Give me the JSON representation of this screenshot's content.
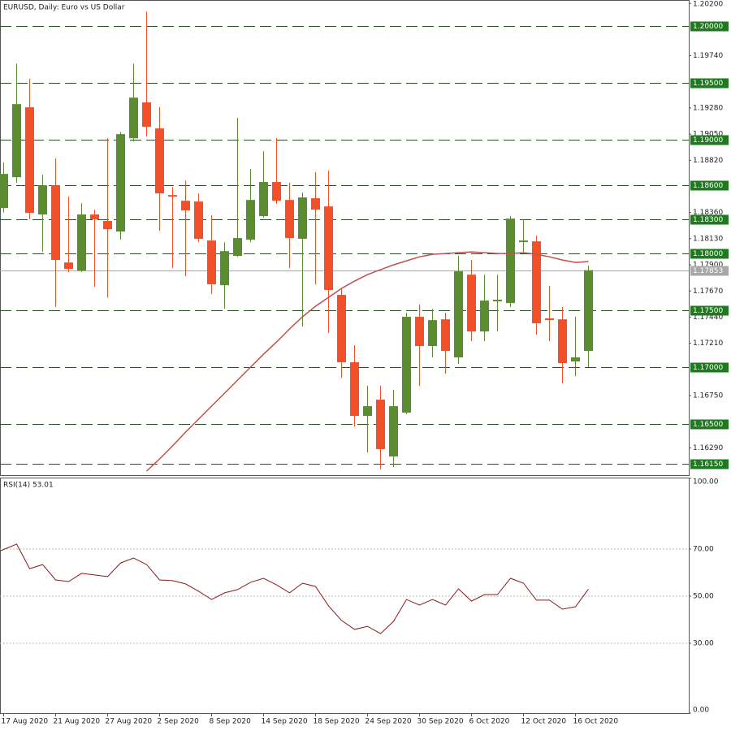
{
  "chart_data": [
    {
      "type": "candlestick",
      "title": "EURUSD, Daily:  Euro vs US Dollar",
      "categories": [
        "17 Aug 2020",
        null,
        null,
        null,
        "21 Aug 2020",
        null,
        null,
        null,
        "27 Aug 2020",
        null,
        null,
        null,
        "2 Sep 2020",
        null,
        null,
        null,
        "8 Sep 2020",
        null,
        null,
        null,
        "14 Sep 2020",
        null,
        null,
        null,
        "18 Sep 2020",
        null,
        null,
        null,
        "24 Sep 2020",
        null,
        null,
        null,
        "30 Sep 2020",
        null,
        null,
        null,
        "6 Oct 2020",
        null,
        null,
        null,
        "12 Oct 2020",
        null,
        null,
        null,
        "16 Oct 2020",
        null
      ],
      "open": [
        1.184,
        1.18671,
        1.19286,
        1.18343,
        1.186,
        1.17921,
        1.1785,
        1.18343,
        1.18286,
        1.18193,
        1.19014,
        1.19329,
        1.191,
        1.18514,
        1.18464,
        1.18457,
        1.18114,
        1.17721,
        1.17979,
        1.18121,
        1.18329,
        1.18629,
        1.18471,
        1.18129,
        1.18486,
        1.18414,
        1.17636,
        1.17043,
        1.16571,
        1.16714,
        1.16214,
        1.166,
        1.17443,
        1.17186,
        1.17421,
        1.17086,
        1.17814,
        1.17314,
        1.17579,
        1.17564,
        1.181,
        1.18107,
        1.17429,
        1.17421,
        1.1705,
        1.17143
      ],
      "high": [
        1.188,
        1.19671,
        1.19536,
        1.18693,
        1.18836,
        1.185,
        1.18443,
        1.18386,
        1.19014,
        1.1907,
        1.19671,
        1.20129,
        1.19286,
        1.18586,
        1.18643,
        1.18529,
        1.18336,
        1.181,
        1.19193,
        1.18743,
        1.189,
        1.19014,
        1.18621,
        1.18536,
        1.18714,
        1.18729,
        1.17693,
        1.17193,
        1.16836,
        1.16836,
        1.168,
        1.17479,
        1.1755,
        1.17514,
        1.17479,
        1.17979,
        1.17943,
        1.17814,
        1.17814,
        1.18329,
        1.183,
        1.18157,
        1.17714,
        1.17529,
        1.17443,
        1.17893
      ],
      "low": [
        1.1836,
        1.18621,
        1.183,
        1.18014,
        1.17529,
        1.17836,
        1.17836,
        1.17707,
        1.17614,
        1.18121,
        1.18986,
        1.19029,
        1.182,
        1.17871,
        1.178,
        1.181,
        1.17643,
        1.17514,
        1.17971,
        1.181,
        1.18314,
        1.18436,
        1.17871,
        1.17357,
        1.17729,
        1.173,
        1.16907,
        1.16479,
        1.1625,
        1.161,
        1.16121,
        1.16586,
        1.16836,
        1.17086,
        1.16943,
        1.17029,
        1.17229,
        1.17229,
        1.17314,
        1.17529,
        1.18014,
        1.17286,
        1.17229,
        1.16857,
        1.16921,
        1.17
      ],
      "close": [
        1.187,
        1.19314,
        1.18357,
        1.186,
        1.17943,
        1.17864,
        1.18343,
        1.183,
        1.18214,
        1.1905,
        1.19371,
        1.19114,
        1.18529,
        1.185,
        1.18379,
        1.18129,
        1.17729,
        1.18021,
        1.18136,
        1.18471,
        1.18629,
        1.18464,
        1.18136,
        1.18493,
        1.18386,
        1.17679,
        1.17043,
        1.16571,
        1.16657,
        1.16279,
        1.16657,
        1.17443,
        1.17186,
        1.17414,
        1.17143,
        1.17843,
        1.17314,
        1.17586,
        1.17593,
        1.18307,
        1.18114,
        1.17386,
        1.17414,
        1.17036,
        1.17086,
        1.17853
      ],
      "up_color": "#5b8c32",
      "down_color": "#f1502a",
      "ma": {
        "color": "#c0504d",
        "values": [
          null,
          null,
          null,
          null,
          null,
          null,
          null,
          null,
          null,
          null,
          null,
          1.16086,
          1.16193,
          1.16307,
          1.16429,
          1.16543,
          1.16657,
          1.16771,
          1.16886,
          1.17,
          1.17114,
          1.17221,
          1.17336,
          1.17443,
          1.17536,
          1.17614,
          1.17693,
          1.17757,
          1.17814,
          1.17857,
          1.179,
          1.17936,
          1.17971,
          1.17993,
          1.18,
          1.18007,
          1.18014,
          1.18007,
          1.18,
          1.18,
          1.18007,
          1.17993,
          1.17971,
          1.17943,
          1.17921,
          1.17929
        ]
      },
      "ylim": [
        1.1605,
        1.2023
      ],
      "yticks": [
        {
          "value": 1.202,
          "label": "1.20200"
        },
        {
          "value": 1.1974,
          "label": "1.19740"
        },
        {
          "value": 1.1928,
          "label": "1.19280"
        },
        {
          "value": 1.1905,
          "label": "1.19050"
        },
        {
          "value": 1.1882,
          "label": "1.18820"
        },
        {
          "value": 1.1836,
          "label": "1.18360"
        },
        {
          "value": 1.1813,
          "label": "1.18130"
        },
        {
          "value": 1.179,
          "label": "1.17900"
        },
        {
          "value": 1.1767,
          "label": "1.17670"
        },
        {
          "value": 1.1744,
          "label": "1.17440"
        },
        {
          "value": 1.1721,
          "label": "1.17210"
        },
        {
          "value": 1.1675,
          "label": "1.16750"
        },
        {
          "value": 1.1629,
          "label": "1.16290"
        }
      ],
      "levels": [
        {
          "value": 1.2,
          "label": "1.20000"
        },
        {
          "value": 1.195,
          "label": "1.19500"
        },
        {
          "value": 1.19,
          "label": "1.19000"
        },
        {
          "value": 1.186,
          "label": "1.18600"
        },
        {
          "value": 1.183,
          "label": "1.18300"
        },
        {
          "value": 1.18,
          "label": "1.18000"
        },
        {
          "value": 1.175,
          "label": "1.17500"
        },
        {
          "value": 1.17,
          "label": "1.17000"
        },
        {
          "value": 1.165,
          "label": "1.16500"
        },
        {
          "value": 1.1615,
          "label": "1.16150"
        }
      ],
      "level_color": "#1f7a1f",
      "current": {
        "value": 1.17853,
        "label": "1.17853"
      },
      "current_color": "#a8a8a8"
    },
    {
      "type": "line",
      "title": "RSI(14) 53.01",
      "values": [
        69.3,
        72.1,
        61.7,
        63.4,
        56.9,
        56.2,
        59.7,
        59.0,
        58.3,
        64.1,
        66.2,
        63.4,
        56.9,
        56.6,
        55.2,
        52.1,
        48.6,
        51.4,
        52.8,
        55.9,
        57.6,
        54.8,
        51.4,
        55.5,
        54.1,
        45.9,
        39.7,
        35.9,
        37.2,
        34.1,
        39.3,
        48.6,
        46.2,
        48.6,
        46.2,
        53.1,
        47.9,
        50.7,
        50.7,
        57.6,
        55.5,
        48.3,
        48.3,
        44.5,
        45.5,
        53.01
      ],
      "color": "#8b1a1a",
      "ylim": [
        0,
        100
      ],
      "yticks": [
        {
          "value": 100,
          "label": "100.00"
        },
        {
          "value": 70,
          "label": "70.00"
        },
        {
          "value": 50,
          "label": "50.00"
        },
        {
          "value": 30,
          "label": "30.00"
        },
        {
          "value": 0,
          "label": "0.00"
        }
      ],
      "grid": true
    }
  ]
}
